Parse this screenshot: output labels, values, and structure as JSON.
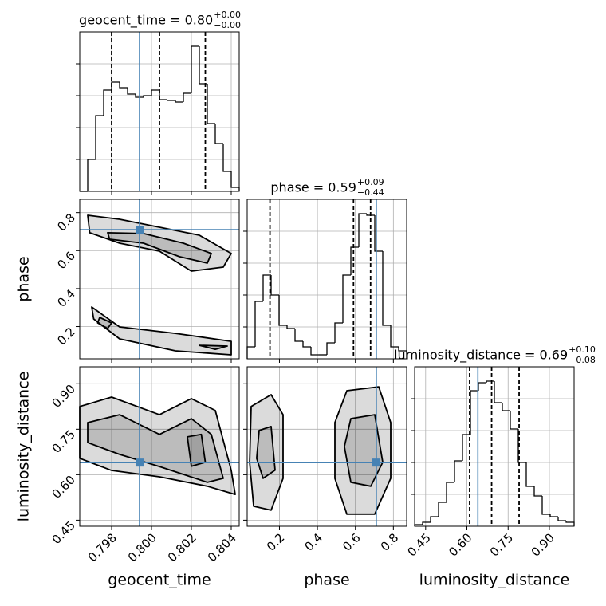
{
  "chart_data": {
    "type": "corner",
    "truth_color": "#4682b4",
    "line_color": "#000000",
    "hist_ylim": [
      0,
      200
    ],
    "hist_yticks": [
      40,
      80,
      120,
      160
    ],
    "grid": true,
    "parameters": [
      {
        "label": "geocent_time",
        "xlim": [
          0.7964,
          0.8044
        ],
        "ticks": [
          0.798,
          {
            "value": 0.8,
            "label": "0.800"
          },
          0.802,
          0.804
        ],
        "truth": 0.7994
      },
      {
        "label": "phase",
        "xlim": [
          0.03,
          0.87
        ],
        "ylim": [
          0.03,
          0.87
        ],
        "ticks": [
          0.2,
          0.4,
          0.6,
          0.8
        ],
        "truth": 0.71
      },
      {
        "label": "luminosity_distance",
        "xlim": [
          0.41,
          0.99
        ],
        "ylim": [
          0.43,
          0.956
        ],
        "ticks": [
          0.45,
          {
            "value": 0.6,
            "label": "0.60"
          },
          0.75,
          {
            "value": 0.9,
            "label": "0.90"
          }
        ],
        "truth": 0.64
      }
    ],
    "histograms": [
      {
        "param": 0,
        "title": "geocent_time = 0.80",
        "upper": "+0.00",
        "lower": "−0.00",
        "bins": [
          0.7964,
          0.7968,
          0.7972,
          0.7976,
          0.798,
          0.7984,
          0.7988,
          0.7992,
          0.7996,
          0.8,
          0.8004,
          0.8008,
          0.8012,
          0.8016,
          0.802,
          0.8024,
          0.8028,
          0.8032,
          0.8036,
          0.804,
          0.8044
        ],
        "counts": [
          0,
          40,
          95,
          127,
          137,
          130,
          122,
          118,
          120,
          127,
          115,
          114,
          112,
          123,
          182,
          135,
          85,
          60,
          25,
          5
        ],
        "quantiles": [
          0.798,
          0.8004,
          0.8027
        ]
      },
      {
        "param": 1,
        "title": "phase = 0.59",
        "upper": "+0.09",
        "lower": "−0.44",
        "bins": [
          0.03,
          0.072,
          0.114,
          0.156,
          0.198,
          0.24,
          0.282,
          0.324,
          0.366,
          0.408,
          0.45,
          0.492,
          0.534,
          0.576,
          0.618,
          0.66,
          0.702,
          0.744,
          0.786,
          0.828,
          0.87
        ],
        "counts": [
          15,
          72,
          105,
          80,
          42,
          38,
          22,
          15,
          5,
          5,
          20,
          45,
          105,
          140,
          182,
          180,
          135,
          42,
          15,
          10
        ],
        "quantiles": [
          0.15,
          0.59,
          0.68
        ]
      },
      {
        "param": 2,
        "title": "luminosity_distance = 0.69",
        "upper": "+0.10",
        "lower": "−0.08",
        "bins": [
          0.41,
          0.439,
          0.468,
          0.497,
          0.526,
          0.555,
          0.584,
          0.613,
          0.642,
          0.671,
          0.7,
          0.729,
          0.758,
          0.787,
          0.816,
          0.845,
          0.874,
          0.903,
          0.932,
          0.961,
          0.99
        ],
        "counts": [
          2,
          5,
          12,
          30,
          55,
          82,
          115,
          170,
          180,
          182,
          155,
          145,
          122,
          80,
          50,
          38,
          15,
          12,
          7,
          5
        ],
        "quantiles": [
          0.61,
          0.69,
          0.79
        ]
      }
    ],
    "contours": [
      {
        "x": 0,
        "y": 1,
        "levels": [
          {
            "x": [
              0.7968,
              0.7984,
              0.8004,
              0.8024,
              0.804,
              0.8036,
              0.802,
              0.8004,
              0.7984,
              0.7969
            ],
            "y": [
              0.786,
              0.765,
              0.723,
              0.681,
              0.585,
              0.513,
              0.492,
              0.597,
              0.639,
              0.694
            ]
          },
          {
            "x": [
              0.797,
              0.7984,
              0.8012,
              0.804,
              0.804,
              0.8012,
              0.7984,
              0.7971
            ],
            "y": [
              0.303,
              0.198,
              0.164,
              0.122,
              0.051,
              0.072,
              0.135,
              0.24
            ]
          },
          {
            "x": [
              0.7978,
              0.7996,
              0.8016,
              0.803,
              0.8028,
              0.8014,
              0.7996,
              0.7979
            ],
            "y": [
              0.694,
              0.69,
              0.639,
              0.585,
              0.534,
              0.568,
              0.639,
              0.66
            ]
          },
          {
            "x": [
              0.7974,
              0.798,
              0.7978,
              0.7973
            ],
            "y": [
              0.248,
              0.219,
              0.19,
              0.219
            ]
          },
          {
            "x": [
              0.8024,
              0.8038,
              0.8032
            ],
            "y": [
              0.101,
              0.097,
              0.08
            ]
          }
        ]
      },
      {
        "x": 0,
        "y": 2,
        "levels": [
          {
            "x": [
              0.7964,
              0.798,
              0.8004,
              0.802,
              0.8032,
              0.804,
              0.8042,
              0.8028,
              0.8004,
              0.798,
              0.7964
            ],
            "y": [
              0.825,
              0.856,
              0.798,
              0.851,
              0.812,
              0.614,
              0.535,
              0.562,
              0.593,
              0.614,
              0.654
            ]
          },
          {
            "x": [
              0.7968,
              0.7984,
              0.8004,
              0.802,
              0.803,
              0.8036,
              0.8028,
              0.8004,
              0.7984,
              0.7968
            ],
            "y": [
              0.772,
              0.798,
              0.733,
              0.785,
              0.733,
              0.588,
              0.575,
              0.627,
              0.667,
              0.706
            ]
          },
          {
            "x": [
              0.8018,
              0.8025,
              0.8027,
              0.802
            ],
            "y": [
              0.725,
              0.733,
              0.641,
              0.628
            ]
          }
        ]
      },
      {
        "x": 1,
        "y": 2,
        "levels": [
          {
            "x": [
              0.051,
              0.156,
              0.219,
              0.219,
              0.156,
              0.064,
              0.043
            ],
            "y": [
              0.825,
              0.864,
              0.798,
              0.588,
              0.483,
              0.496,
              0.641
            ]
          },
          {
            "x": [
              0.555,
              0.723,
              0.786,
              0.786,
              0.702,
              0.555,
              0.492,
              0.492
            ],
            "y": [
              0.877,
              0.89,
              0.772,
              0.588,
              0.47,
              0.47,
              0.588,
              0.772
            ]
          },
          {
            "x": [
              0.093,
              0.156,
              0.177,
              0.114,
              0.08
            ],
            "y": [
              0.746,
              0.759,
              0.615,
              0.588,
              0.654
            ]
          },
          {
            "x": [
              0.576,
              0.702,
              0.744,
              0.681,
              0.576,
              0.542
            ],
            "y": [
              0.785,
              0.798,
              0.641,
              0.562,
              0.575,
              0.693
            ]
          }
        ]
      }
    ]
  }
}
